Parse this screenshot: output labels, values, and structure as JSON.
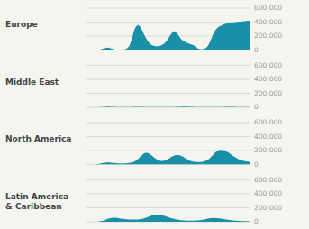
{
  "chart_data": [
    {
      "type": "area",
      "title": "Europe",
      "color": "#1a8fa8",
      "ylim": [
        0,
        600000
      ],
      "yticks": [
        0,
        {
          "value": 200000,
          "label": "200,000"
        },
        {
          "value": 400000,
          "label": "400,000"
        },
        {
          "value": 600000,
          "label": "600,000"
        }
      ],
      "grid": true,
      "tick_labels": "y",
      "values": [
        200,
        300,
        400,
        500,
        600,
        800,
        1000,
        1500,
        2500,
        4000,
        7000,
        12000,
        18000,
        26000,
        32000,
        35000,
        33000,
        28000,
        22000,
        16000,
        11000,
        8000,
        6000,
        5000,
        4500,
        4800,
        5500,
        7000,
        10000,
        16000,
        28000,
        50000,
        90000,
        150000,
        220000,
        290000,
        330000,
        350000,
        360000,
        340000,
        310000,
        270000,
        230000,
        190000,
        155000,
        125000,
        100000,
        82000,
        70000,
        62000,
        58000,
        56000,
        56000,
        58000,
        62000,
        70000,
        80000,
        95000,
        115000,
        140000,
        170000,
        200000,
        230000,
        255000,
        270000,
        265000,
        245000,
        220000,
        190000,
        165000,
        145000,
        130000,
        118000,
        108000,
        100000,
        92000,
        85000,
        78000,
        72000,
        65000,
        55000,
        30000,
        18000,
        12000,
        10000,
        12000,
        16000,
        25000,
        40000,
        65000,
        100000,
        145000,
        195000,
        240000,
        275000,
        300000,
        320000,
        335000,
        345000,
        355000,
        365000,
        372000,
        378000,
        382000,
        385000,
        388000,
        392000,
        395000,
        398000,
        400000,
        402000,
        404000,
        406000,
        408000,
        410000,
        412000,
        414000,
        416000,
        418000,
        420000,
        422000
      ]
    },
    {
      "type": "area",
      "title": "Middle East",
      "color": "#1a8fa8",
      "ylim": [
        0,
        600000
      ],
      "yticks": [
        0,
        {
          "value": 200000,
          "label": "200,000"
        },
        {
          "value": 400000,
          "label": "400,000"
        },
        {
          "value": 600000,
          "label": "600,000"
        }
      ],
      "grid": true,
      "tick_labels": "y",
      "values": [
        50,
        50,
        60,
        80,
        100,
        150,
        250,
        400,
        700,
        1200,
        2000,
        3200,
        4500,
        5800,
        7000,
        8000,
        8500,
        8200,
        7500,
        6800,
        6000,
        5200,
        4500,
        4000,
        3500,
        3200,
        3000,
        2900,
        2900,
        3000,
        3200,
        3500,
        3800,
        4200,
        4600,
        5000,
        5300,
        5500,
        5600,
        5600,
        5500,
        5300,
        5000,
        4700,
        4400,
        4100,
        3800,
        3500,
        3200,
        3000,
        2800,
        2600,
        2400,
        2200,
        2100,
        2000,
        1900,
        1900,
        1900,
        2000,
        2100,
        2200,
        2400,
        2700,
        3100,
        3600,
        4200,
        4900,
        5700,
        6500,
        7300,
        8000,
        8500,
        8800,
        8800,
        8500,
        8000,
        7300,
        6600,
        5900,
        5300,
        4700,
        4200,
        3700,
        3300,
        3000,
        2700,
        2500,
        2300,
        2100,
        2000,
        1900,
        1800,
        1800,
        1800,
        1900,
        2000,
        2200,
        2500,
        2900,
        3400,
        4000,
        4700,
        5400,
        6000,
        6500,
        6800,
        6900,
        6800,
        6500,
        6000,
        5500,
        5000,
        4500,
        4000,
        3600,
        3200,
        2900,
        2600,
        2300,
        2100,
        1900,
        1800,
        1700
      ]
    },
    {
      "type": "area",
      "title": "North America",
      "color": "#1a8fa8",
      "ylim": [
        0,
        600000
      ],
      "yticks": [
        0,
        {
          "value": 200000,
          "label": "200,000"
        },
        {
          "value": 400000,
          "label": "400,000"
        },
        {
          "value": 600000,
          "label": "600,000"
        }
      ],
      "grid": true,
      "tick_labels": "y",
      "values": [
        500,
        500,
        600,
        700,
        900,
        1200,
        2000,
        3500,
        6000,
        9000,
        13000,
        18000,
        23000,
        27000,
        30000,
        31000,
        30000,
        28000,
        26000,
        24000,
        22000,
        20000,
        18000,
        17000,
        16000,
        15500,
        15500,
        16000,
        17000,
        18500,
        20500,
        23000,
        26000,
        30000,
        36000,
        45000,
        57000,
        72000,
        90000,
        110000,
        130000,
        148000,
        160000,
        167000,
        168000,
        162000,
        150000,
        135000,
        118000,
        101000,
        86000,
        73000,
        63000,
        56000,
        52000,
        51000,
        53000,
        58000,
        66000,
        76000,
        88000,
        100000,
        112000,
        122000,
        130000,
        135000,
        137000,
        135000,
        130000,
        122000,
        112000,
        100000,
        88000,
        76000,
        65000,
        56000,
        49000,
        44000,
        40000,
        38000,
        37000,
        36000,
        36000,
        37000,
        39000,
        43000,
        49000,
        57000,
        68000,
        82000,
        100000,
        120000,
        142000,
        163000,
        182000,
        196000,
        205000,
        210000,
        211000,
        208000,
        202000,
        193000,
        182000,
        170000,
        157000,
        143000,
        129000,
        116000,
        103000,
        92000,
        81000,
        72000,
        64000,
        57000,
        52000,
        47000,
        44000,
        41000,
        39000,
        38000
      ]
    },
    {
      "type": "area",
      "title": "Latin America\n& Caribbean",
      "color": "#1a8fa8",
      "ylim": [
        0,
        600000
      ],
      "yticks": [
        0,
        {
          "value": 200000,
          "label": "200,000"
        },
        {
          "value": 400000,
          "label": "400,000"
        },
        {
          "value": 600000,
          "label": "600,000"
        }
      ],
      "grid": true,
      "tick_labels": "y",
      "values": [
        50,
        50,
        60,
        80,
        100,
        150,
        300,
        600,
        1200,
        2500,
        5000,
        9000,
        14000,
        20000,
        27000,
        34000,
        41000,
        47000,
        52000,
        55000,
        57000,
        58000,
        57000,
        55000,
        52000,
        49000,
        46000,
        43000,
        41000,
        39000,
        37000,
        35000,
        33000,
        32000,
        31000,
        31000,
        31000,
        32000,
        33000,
        35000,
        37000,
        40000,
        44000,
        49000,
        55000,
        62000,
        69000,
        77000,
        84000,
        90000,
        95000,
        98000,
        100000,
        101000,
        100000,
        98000,
        95000,
        91000,
        86000,
        80000,
        74000,
        68000,
        62000,
        56000,
        50000,
        45000,
        40000,
        36000,
        32000,
        29000,
        26000,
        23000,
        21000,
        19000,
        18000,
        17000,
        16000,
        15000,
        15000,
        15000,
        16000,
        17000,
        18000,
        19000,
        21000,
        23000,
        26000,
        29000,
        33000,
        37000,
        41000,
        45000,
        48000,
        51000,
        53000,
        54000,
        54000,
        53000,
        51000,
        49000,
        47000,
        44000,
        41000,
        38000,
        35000,
        32000,
        29000,
        26000,
        23000,
        21000,
        19000,
        17000,
        16000,
        15000,
        14000,
        13000,
        12000,
        11000,
        10000,
        9000,
        8500,
        8000,
        7500,
        7000
      ]
    }
  ]
}
